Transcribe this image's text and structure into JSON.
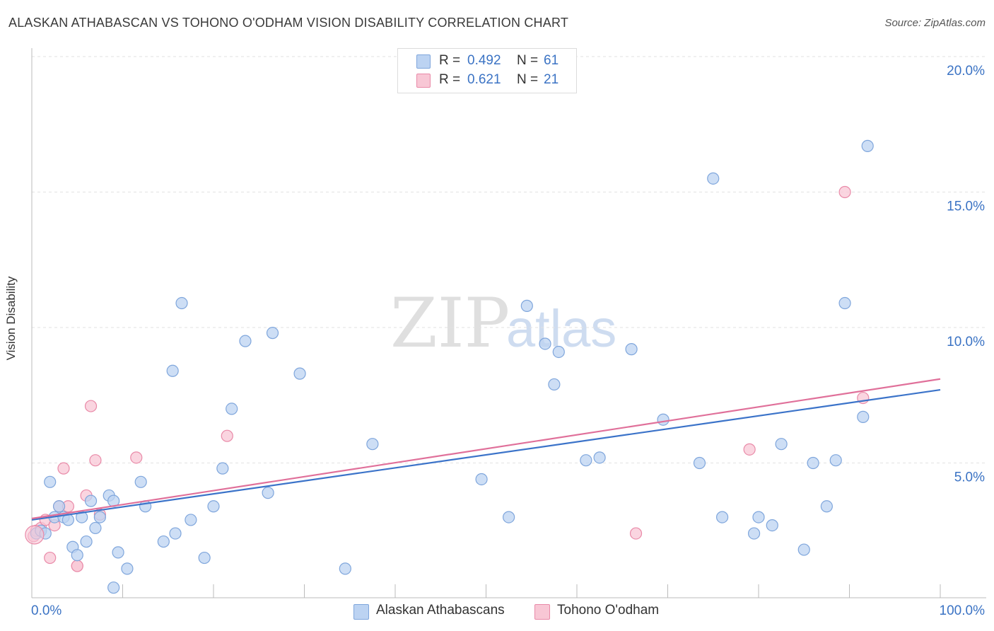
{
  "title": "ALASKAN ATHABASCAN VS TOHONO O'ODHAM VISION DISABILITY CORRELATION CHART",
  "source": "Source: ZipAtlas.com",
  "watermark": {
    "zip": "ZIP",
    "atlas": "atlas"
  },
  "legend": {
    "series1": {
      "r_label": "R =",
      "r_value": "0.492",
      "n_label": "N =",
      "n_value": "61"
    },
    "series2": {
      "r_label": "R =",
      "r_value": "0.621",
      "n_label": "N =",
      "n_value": "21"
    }
  },
  "colors": {
    "blue_fill": "#bcd3f2",
    "blue_stroke": "#7fa6dc",
    "blue_line": "#3b73c9",
    "pink_fill": "#f8c7d5",
    "pink_stroke": "#e98aa8",
    "pink_line": "#e0709a",
    "tick_text": "#3b73c4"
  },
  "chart_data": {
    "type": "scatter",
    "title": "ALASKAN ATHABASCAN VS TOHONO O'ODHAM VISION DISABILITY CORRELATION CHART",
    "xlabel": "",
    "ylabel": "Vision Disability",
    "xlim": [
      0,
      100
    ],
    "ylim": [
      0,
      20
    ],
    "x_tick_labels": [
      "0.0%",
      "100.0%"
    ],
    "y_ticks": [
      5,
      10,
      15,
      20
    ],
    "y_tick_labels": [
      "5.0%",
      "10.0%",
      "15.0%",
      "20.0%"
    ],
    "grid": true,
    "legend_position": "top-center",
    "series": [
      {
        "name": "Alaskan Athabascans",
        "r": 0.492,
        "n": 61,
        "trend": {
          "x": [
            0,
            100
          ],
          "y": [
            2.9,
            7.7
          ]
        },
        "x": [
          0.5,
          1.0,
          1.5,
          2.0,
          2.5,
          3.0,
          3.5,
          4.0,
          4.5,
          5.0,
          5.5,
          6.0,
          6.5,
          7.0,
          7.5,
          8.5,
          9.0,
          9.0,
          9.5,
          10.5,
          12.0,
          12.5,
          14.5,
          15.5,
          15.8,
          16.5,
          17.5,
          19.0,
          20.0,
          21.0,
          22.0,
          23.5,
          26.0,
          26.5,
          29.5,
          34.5,
          37.5,
          49.5,
          52.5,
          54.5,
          56.5,
          57.5,
          58.0,
          61.0,
          62.5,
          66.0,
          69.5,
          73.5,
          75.0,
          76.0,
          79.5,
          80.0,
          81.5,
          82.5,
          85.0,
          86.0,
          87.5,
          88.5,
          89.5,
          91.5,
          92.0
        ],
        "y": [
          2.4,
          2.5,
          2.4,
          4.3,
          3.0,
          3.4,
          3.0,
          2.9,
          1.9,
          1.6,
          3.0,
          2.1,
          3.6,
          2.6,
          3.0,
          3.8,
          0.4,
          3.6,
          1.7,
          1.1,
          4.3,
          3.4,
          2.1,
          8.4,
          2.4,
          10.9,
          2.9,
          1.5,
          3.4,
          4.8,
          7.0,
          9.5,
          3.9,
          9.8,
          8.3,
          1.1,
          5.7,
          4.4,
          3.0,
          10.8,
          9.4,
          7.9,
          9.1,
          5.1,
          5.2,
          9.2,
          6.6,
          5.0,
          15.5,
          3.0,
          2.4,
          3.0,
          2.7,
          5.7,
          1.8,
          5.0,
          3.4,
          5.1,
          10.9,
          6.7,
          16.7
        ]
      },
      {
        "name": "Tohono O'odham",
        "r": 0.621,
        "n": 21,
        "trend": {
          "x": [
            0,
            100
          ],
          "y": [
            2.95,
            8.1
          ]
        },
        "x": [
          0.2,
          0.5,
          1.0,
          1.5,
          2.0,
          2.5,
          3.0,
          3.5,
          4.0,
          5.0,
          5.0,
          6.0,
          6.5,
          7.0,
          7.5,
          11.5,
          21.5,
          66.5,
          79.0,
          89.5,
          91.5
        ],
        "y": [
          2.3,
          2.5,
          2.6,
          2.9,
          1.5,
          2.7,
          3.4,
          4.8,
          3.4,
          1.2,
          1.2,
          3.8,
          7.1,
          5.1,
          3.1,
          5.2,
          6.0,
          2.4,
          5.5,
          15.0,
          7.4
        ]
      }
    ]
  }
}
